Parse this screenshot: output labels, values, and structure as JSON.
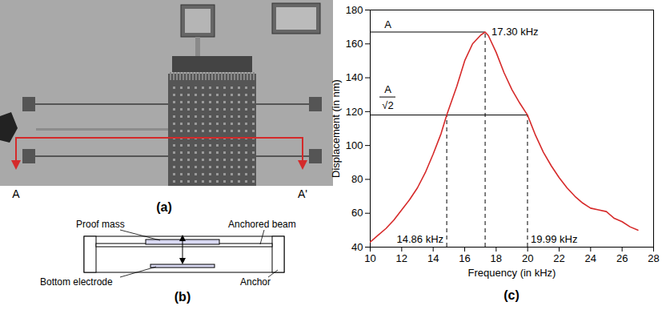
{
  "chart_data": {
    "type": "line",
    "title": "(c)",
    "xlabel": "Frequency (in kHz)",
    "ylabel": "Displacement (in nm)",
    "x": [
      10,
      10.5,
      11,
      11.5,
      12,
      12.5,
      13,
      13.5,
      14,
      14.5,
      14.86,
      15.5,
      16,
      16.5,
      17,
      17.3,
      17.5,
      18,
      18.5,
      19,
      19.5,
      19.99,
      20.5,
      21,
      21.5,
      22,
      22.5,
      23,
      23.5,
      24,
      24.5,
      25,
      25.5,
      26,
      26.5,
      27
    ],
    "values": [
      43,
      47,
      51,
      56,
      62,
      68,
      75,
      84,
      95,
      107,
      118,
      135,
      150,
      160,
      165,
      167,
      165,
      155,
      143,
      133,
      125,
      118,
      106,
      96,
      88,
      81,
      75,
      70,
      66,
      63,
      62,
      61,
      57,
      55,
      52,
      50
    ],
    "color": "#d62a2a",
    "xlim": [
      10,
      28
    ],
    "xticks": [
      10,
      12,
      14,
      16,
      18,
      20,
      22,
      24,
      26,
      28
    ],
    "ylim": [
      40,
      180
    ],
    "yticks": [
      40,
      60,
      80,
      100,
      120,
      140,
      160,
      180
    ],
    "grid": false,
    "annotations": {
      "levels": [
        {
          "label": "A",
          "y": 167,
          "x": 17.3
        },
        {
          "numerator": "A",
          "denominator": "√2",
          "y": 118,
          "x": 19.99
        }
      ],
      "markers": [
        {
          "label": "17.30 kHz",
          "x": 17.3,
          "y": 167
        },
        {
          "label": "14.86 kHz",
          "x": 14.86,
          "y": 118
        },
        {
          "label": "19.99 kHz",
          "x": 19.99,
          "y": 118
        }
      ]
    }
  },
  "panels": {
    "a": {
      "label": "(a)",
      "section": {
        "start": "A",
        "end": "A'"
      }
    },
    "b": {
      "label": "(b)",
      "callouts": {
        "proof_mass": "Proof mass",
        "beam": "Anchored beam",
        "electrode": "Bottom electrode",
        "anchor": "Anchor"
      }
    }
  }
}
